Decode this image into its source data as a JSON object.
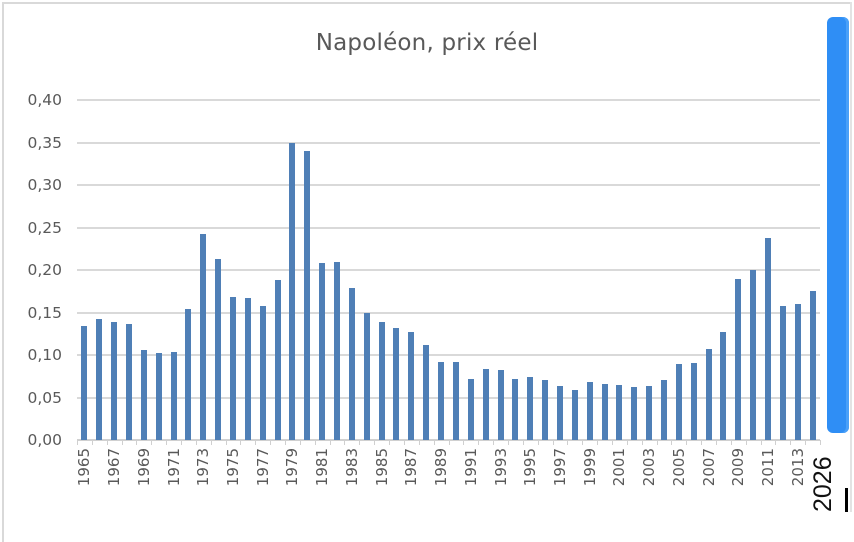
{
  "chart_data": {
    "type": "bar",
    "title": "Napoléon, prix réel",
    "xlabel": "",
    "ylabel": "",
    "ylim": [
      0,
      0.4
    ],
    "yticks": [
      "0,00",
      "0,05",
      "0,10",
      "0,15",
      "0,20",
      "0,25",
      "0,30",
      "0,35",
      "0,40"
    ],
    "grid": true,
    "legend": null,
    "categories": [
      1965,
      1966,
      1967,
      1968,
      1969,
      1970,
      1971,
      1972,
      1973,
      1974,
      1975,
      1976,
      1977,
      1978,
      1979,
      1980,
      1981,
      1982,
      1983,
      1984,
      1985,
      1986,
      1987,
      1988,
      1989,
      1990,
      1991,
      1992,
      1993,
      1994,
      1995,
      1996,
      1997,
      1998,
      1999,
      2000,
      2001,
      2002,
      2003,
      2004,
      2005,
      2006,
      2007,
      2008,
      2009,
      2010,
      2011,
      2012,
      2013,
      2014
    ],
    "xtick_labels": [
      "1965",
      "1967",
      "1969",
      "1971",
      "1973",
      "1975",
      "1977",
      "1979",
      "1981",
      "1983",
      "1985",
      "1987",
      "1989",
      "1991",
      "1993",
      "1995",
      "1997",
      "1999",
      "2001",
      "2003",
      "2005",
      "2007",
      "2009",
      "2011",
      "2013"
    ],
    "series": [
      {
        "name": "Napoléon, prix réel",
        "color": "#4f7fb6",
        "values": [
          0.134,
          0.142,
          0.139,
          0.136,
          0.106,
          0.102,
          0.103,
          0.154,
          0.242,
          0.213,
          0.168,
          0.167,
          0.158,
          0.188,
          0.35,
          0.34,
          0.208,
          0.209,
          0.179,
          0.149,
          0.139,
          0.132,
          0.127,
          0.112,
          0.092,
          0.092,
          0.072,
          0.084,
          0.082,
          0.072,
          0.074,
          0.071,
          0.063,
          0.059,
          0.068,
          0.066,
          0.065,
          0.062,
          0.063,
          0.071,
          0.089,
          0.091,
          0.107,
          0.127,
          0.189,
          0.2,
          0.238,
          0.158,
          0.16,
          0.175
        ]
      }
    ]
  },
  "overlay": {
    "year_text": "2026"
  },
  "colors": {
    "bar": "#4f7fb6",
    "grid": "#d9d9d9",
    "text": "#595959",
    "scrollbar": "#2f8ef5"
  }
}
